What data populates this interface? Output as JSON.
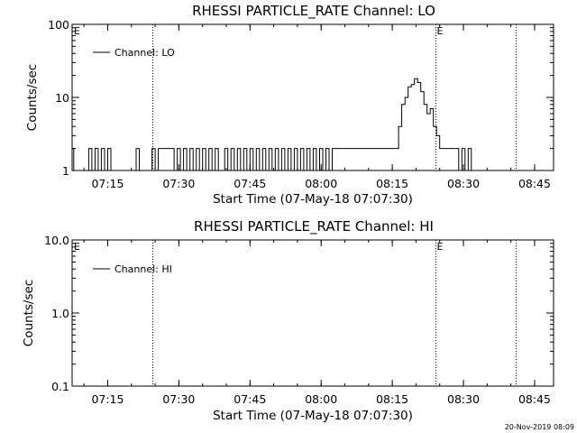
{
  "chart_data": [
    {
      "type": "line",
      "title": "RHESSI PARTICLE_RATE Channel: LO",
      "xlabel": "Start Time (07-May-18 07:07:30)",
      "ylabel": "Counts/sec",
      "y_scale": "log",
      "ylim": [
        1,
        100
      ],
      "xlim": [
        "07:07:30",
        "08:49:00"
      ],
      "x_ticks": [
        "07:15",
        "07:30",
        "07:45",
        "08:00",
        "08:15",
        "08:30",
        "08:45"
      ],
      "y_ticks": [
        "1",
        "10",
        "100"
      ],
      "legend": {
        "entries": [
          "Channel: LO"
        ],
        "position": "top-left"
      },
      "vertical_markers": [
        {
          "time": "07:24:30",
          "label": ""
        },
        {
          "time": "08:24:10",
          "label": "E"
        },
        {
          "time": "08:41:00",
          "label": ""
        }
      ],
      "corner_label": "E",
      "series": [
        {
          "name": "Channel: LO",
          "x": [
            "07:07:30",
            "07:07:50",
            "07:08:10",
            "07:08:30",
            "07:09:00",
            "07:09:40",
            "07:10:20",
            "07:11:00",
            "07:11:40",
            "07:12:20",
            "07:13:00",
            "07:13:40",
            "07:14:20",
            "07:15:00",
            "07:15:40",
            "07:16:20",
            "07:17:00",
            "07:17:40",
            "07:18:20",
            "07:19:00",
            "07:19:40",
            "07:20:20",
            "07:21:00",
            "07:21:40",
            "07:22:20",
            "07:23:00",
            "07:23:40",
            "07:24:20",
            "07:25:00",
            "07:25:40",
            "07:26:20",
            "07:27:00",
            "07:27:40",
            "07:28:20",
            "07:29:00",
            "07:29:40",
            "07:30:20",
            "07:31:00",
            "07:31:40",
            "07:32:20",
            "07:33:00",
            "07:33:40",
            "07:34:20",
            "07:35:00",
            "07:35:40",
            "07:36:20",
            "07:37:00",
            "07:37:40",
            "07:38:20",
            "07:39:00",
            "07:39:40",
            "07:40:20",
            "07:41:00",
            "07:41:40",
            "07:42:20",
            "07:43:00",
            "07:43:40",
            "07:44:20",
            "07:45:00",
            "07:45:40",
            "07:46:20",
            "07:47:00",
            "07:47:40",
            "07:48:20",
            "07:49:00",
            "07:49:40",
            "07:50:20",
            "07:51:00",
            "07:51:40",
            "07:52:20",
            "07:53:00",
            "07:53:40",
            "07:54:20",
            "07:55:00",
            "07:55:40",
            "07:56:20",
            "07:57:00",
            "07:57:40",
            "07:58:20",
            "07:59:00",
            "07:59:40",
            "08:00:20",
            "08:01:00",
            "08:01:40",
            "08:02:20",
            "08:03:00",
            "08:03:40",
            "08:04:20",
            "08:05:00",
            "08:05:40",
            "08:06:20",
            "08:07:00",
            "08:07:40",
            "08:08:20",
            "08:09:00",
            "08:09:40",
            "08:10:20",
            "08:11:00",
            "08:11:40",
            "08:12:20",
            "08:13:00",
            "08:13:40",
            "08:14:20",
            "08:15:00",
            "08:15:40",
            "08:16:20",
            "08:17:00",
            "08:17:40",
            "08:18:20",
            "08:19:00",
            "08:19:40",
            "08:20:20",
            "08:21:00",
            "08:21:40",
            "08:22:20",
            "08:23:00",
            "08:23:40",
            "08:24:20",
            "08:25:00",
            "08:25:40",
            "08:26:20",
            "08:27:00",
            "08:27:40",
            "08:28:20",
            "08:29:00",
            "08:29:40",
            "08:30:20",
            "08:31:00",
            "08:31:40",
            "08:32:20",
            "08:33:00",
            "08:33:40",
            "08:34:20",
            "08:35:00",
            "08:35:40",
            "08:36:20",
            "08:37:00",
            "08:37:40",
            "08:38:20",
            "08:39:00",
            "08:39:40",
            "08:40:20"
          ],
          "y": [
            2,
            1,
            1,
            1,
            1,
            1,
            1,
            2,
            1,
            2,
            1,
            2,
            1,
            2,
            1,
            1,
            1,
            1,
            1,
            1,
            1,
            1,
            2,
            1,
            1,
            1,
            1,
            2,
            1,
            2,
            2,
            2,
            2,
            2,
            1,
            2,
            1,
            2,
            1,
            2,
            1,
            2,
            1,
            2,
            1,
            2,
            1,
            2,
            1,
            1,
            2,
            1,
            2,
            1,
            2,
            1,
            2,
            1,
            2,
            1,
            2,
            1,
            2,
            1,
            2,
            1,
            2,
            1,
            2,
            1,
            2,
            1,
            2,
            1,
            2,
            1,
            2,
            1,
            2,
            1,
            2,
            1,
            2,
            1,
            2,
            2,
            2,
            2,
            2,
            2,
            2,
            2,
            2,
            2,
            2,
            2,
            2,
            2,
            2,
            2,
            2,
            2,
            2,
            2,
            2,
            4,
            8,
            10,
            14,
            15,
            18,
            16,
            12,
            8,
            6,
            7,
            4,
            3,
            2,
            2,
            2,
            2,
            2,
            2,
            1,
            2,
            1,
            2,
            1,
            1,
            1,
            1,
            1,
            1,
            1,
            1,
            1,
            1,
            1,
            1,
            1,
            1
          ]
        }
      ]
    },
    {
      "type": "line",
      "title": "RHESSI PARTICLE_RATE Channel: HI",
      "xlabel": "Start Time (07-May-18 07:07:30)",
      "ylabel": "Counts/sec",
      "y_scale": "log",
      "ylim": [
        0.1,
        10.0
      ],
      "xlim": [
        "07:07:30",
        "08:49:00"
      ],
      "x_ticks": [
        "07:15",
        "07:30",
        "07:45",
        "08:00",
        "08:15",
        "08:30",
        "08:45"
      ],
      "y_ticks": [
        "0.1",
        "1.0",
        "10.0"
      ],
      "legend": {
        "entries": [
          "Channel: HI"
        ],
        "position": "top-left"
      },
      "vertical_markers": [
        {
          "time": "07:24:30",
          "label": ""
        },
        {
          "time": "08:24:10",
          "label": "E"
        },
        {
          "time": "08:41:00",
          "label": ""
        }
      ],
      "corner_label": "E",
      "series": [
        {
          "name": "Channel: HI",
          "x": [],
          "y": []
        }
      ]
    }
  ],
  "timestamp": "20-Nov-2019 08:09"
}
